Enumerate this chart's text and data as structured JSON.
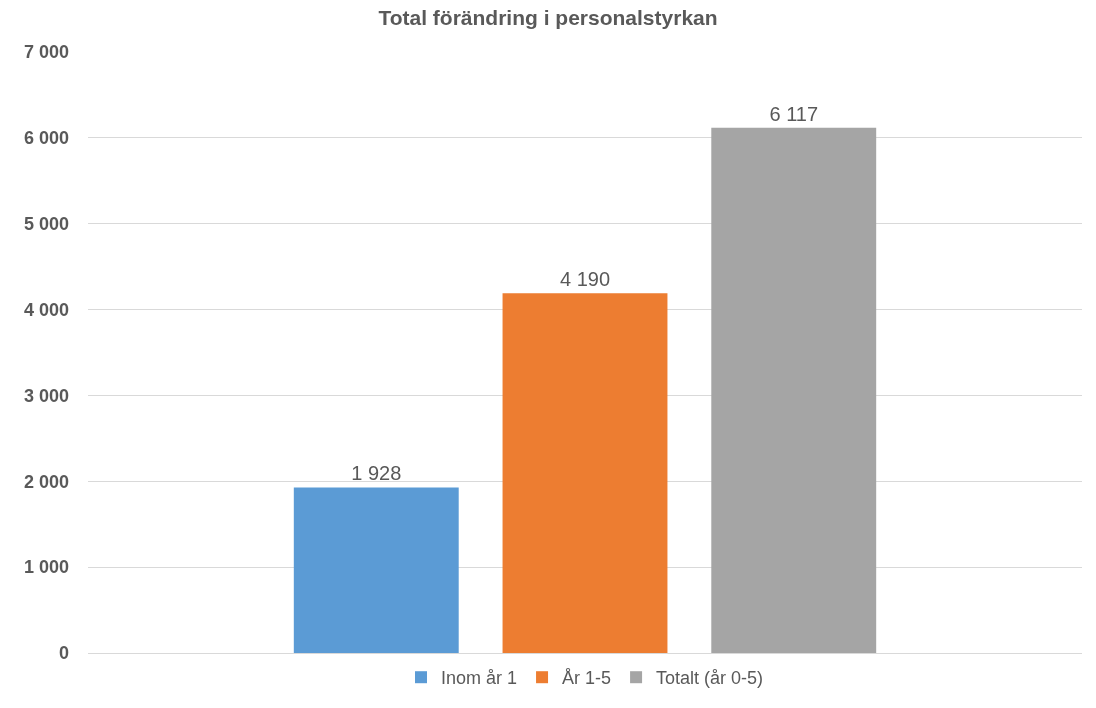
{
  "chart_data": {
    "type": "bar",
    "title": "Total förändring i personalstyrkan",
    "categories": [
      null
    ],
    "series": [
      {
        "name": "Inom år 1",
        "color": "#5b9bd5",
        "values": [
          1928
        ],
        "value_labels": [
          "1 928"
        ]
      },
      {
        "name": "År 1-5",
        "color": "#ed7d31",
        "values": [
          4190
        ],
        "value_labels": [
          "4 190"
        ]
      },
      {
        "name": "Totalt (år 0-5)",
        "color": "#a5a5a5",
        "values": [
          6117
        ],
        "value_labels": [
          "6 117"
        ]
      }
    ],
    "ylim": [
      0,
      7000
    ],
    "yticks": [
      {
        "value": 0,
        "label": "0"
      },
      {
        "value": 1000,
        "label": "1 000"
      },
      {
        "value": 2000,
        "label": "2 000"
      },
      {
        "value": 3000,
        "label": "3 000"
      },
      {
        "value": 4000,
        "label": "4 000"
      },
      {
        "value": 5000,
        "label": "5 000"
      },
      {
        "value": 6000,
        "label": "6 000"
      },
      {
        "value": 7000,
        "label": "7 000"
      }
    ],
    "grid": "y",
    "legend": "bottom"
  }
}
